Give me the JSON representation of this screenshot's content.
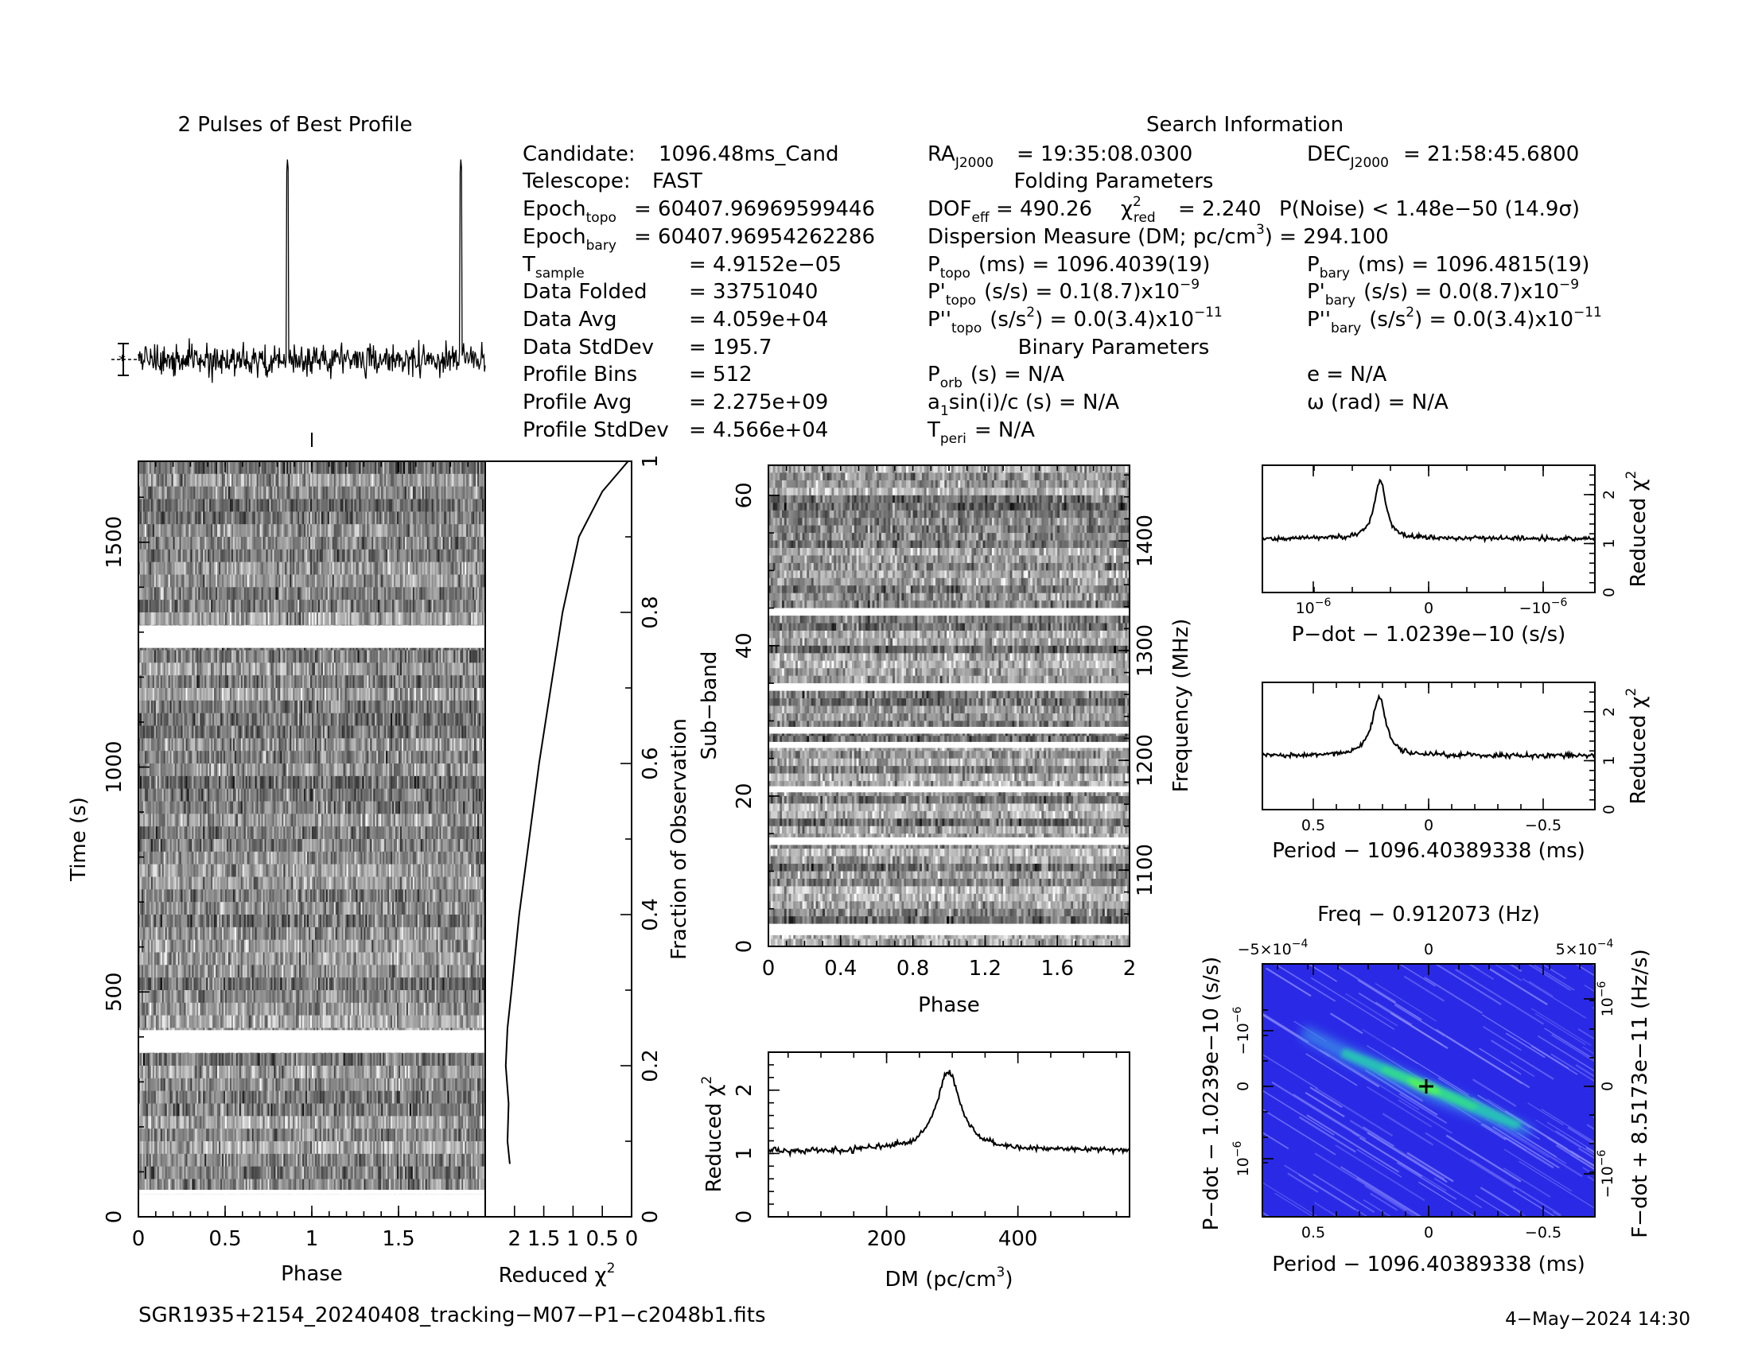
{
  "profile_panel": {
    "title": "2 Pulses of Best Profile"
  },
  "search_info": {
    "title": "Search Information",
    "folding_title": "Folding Parameters",
    "binary_title": "Binary Parameters",
    "candidate_label": "Candidate:",
    "candidate": "1096.48ms_Cand",
    "telescope_label": "Telescope:",
    "telescope": "FAST",
    "epoch_topo_label": "Epoch",
    "epoch_topo_sub": "topo",
    "epoch_topo": "= 60407.96969599446",
    "epoch_bary_label": "Epoch",
    "epoch_bary_sub": "bary",
    "epoch_bary": "= 60407.96954262286",
    "tsample_label": "T",
    "tsample_sub": "sample",
    "tsample": "=  4.9152e−05",
    "data_folded_label": "Data Folded",
    "data_folded": "=  33751040",
    "data_avg_label": "Data Avg",
    "data_avg": "=  4.059e+04",
    "data_std_label": "Data StdDev",
    "data_std": "=  195.7",
    "profile_bins_label": "Profile Bins",
    "profile_bins": "=  512",
    "profile_avg_label": "Profile Avg",
    "profile_avg": "=  2.275e+09",
    "profile_std_label": "Profile StdDev",
    "profile_std": "=  4.566e+04",
    "ra_label": "RA",
    "ra_sub": "J2000",
    "ra": "= 19:35:08.0300",
    "dec_label": "DEC",
    "dec_sub": "J2000",
    "dec": "= 21:58:45.6800",
    "dof_label": "DOF",
    "dof_sub": "eff",
    "dof": "= 490.26",
    "chi_label": "χ",
    "chi_sup": "2",
    "chi_sub": "red",
    "chi": "= 2.240",
    "pnoise": "P(Noise) < 1.48e−50   (14.9σ)",
    "dm_line_a": "Dispersion Measure (DM; pc/cm",
    "dm_line_sup": "3",
    "dm_line_b": ") = 294.100",
    "ptopo_label": "P",
    "ptopo_sub": "topo",
    "ptopo": "(ms) =  1096.4039(19)",
    "pbary_label": "P",
    "pbary_sub": "bary",
    "pbary": "(ms) =  1096.4815(19)",
    "pdtopo_label": "P'",
    "pdtopo_sub": "topo",
    "pdtopo": "(s/s) =  0.1(8.7)x10",
    "pdtopo_exp": "−9",
    "pdbary_label": "P'",
    "pdbary_sub": "bary",
    "pdbary": "(s/s) = 0.0(8.7)x10",
    "pdbary_exp": "−9",
    "pddtopo_label": "P''",
    "pddtopo_sub": "topo",
    "pddtopo_a": "(s/s",
    "pddtopo_sq": "2",
    "pddtopo_b": ") = 0.0(3.4)x10",
    "pddtopo_exp": "−11",
    "pddbary_label": "P''",
    "pddbary_sub": "bary",
    "pddbary_a": "(s/s",
    "pddbary_sq": "2",
    "pddbary_b": ") = 0.0(3.4)x10",
    "pddbary_exp": "−11",
    "porb_label": "P",
    "porb_sub": "orb",
    "porb": "(s) = N/A",
    "ecc": "e = N/A",
    "asini_a": "a",
    "asini_sub": "1",
    "asini_b": "sin(i)/c (s) = N/A",
    "omega": "ω (rad) = N/A",
    "tperi_label": "T",
    "tperi_sub": "peri",
    "tperi": "= N/A"
  },
  "footer": {
    "filename": "SGR1935+2154_20240408_tracking−M07−P1−c2048b1.fits",
    "timestamp": "4−May−2024 14:30"
  },
  "chart_data": [
    {
      "id": "best-profile",
      "type": "line",
      "title": "2 Pulses of Best Profile",
      "x": [
        0,
        2
      ],
      "x_unit": "phase",
      "pulse_phases": [
        0.86,
        1.86
      ],
      "description_values": {
        "baseline": "noise",
        "peak": "narrow pulse"
      }
    },
    {
      "id": "time-phase",
      "type": "heatmap",
      "xlabel": "Phase",
      "ylabel": "Time (s)",
      "xlim": [
        0,
        2
      ],
      "ylim": [
        0,
        1680
      ],
      "xticks": [
        "0",
        "0.5",
        "1",
        "1.5"
      ],
      "yticks": [
        "0",
        "500",
        "1000",
        "1500"
      ],
      "right_axis_label": "Fraction of Observation",
      "right_ticks": [
        "0",
        "0.2",
        "0.4",
        "0.6",
        "0.8",
        "1"
      ],
      "gaps_s": [
        [
          50,
          60
        ],
        [
          365,
          415
        ],
        [
          1265,
          1315
        ]
      ],
      "colormap": "gray"
    },
    {
      "id": "reduced-chi2-vs-time",
      "type": "line",
      "xlabel": "Reduced χ",
      "xlabel_sup": "2",
      "xticks": [
        "2",
        "1.5",
        "1",
        "0.5",
        "0"
      ],
      "xlim": [
        2.5,
        0
      ],
      "points": [
        [
          2.08,
          0.07
        ],
        [
          2.12,
          0.1
        ],
        [
          2.1,
          0.15
        ],
        [
          2.15,
          0.2
        ],
        [
          2.12,
          0.25
        ],
        [
          2.05,
          0.3
        ],
        [
          1.92,
          0.4
        ],
        [
          1.75,
          0.5
        ],
        [
          1.58,
          0.6
        ],
        [
          1.38,
          0.7
        ],
        [
          1.18,
          0.8
        ],
        [
          0.9,
          0.9
        ],
        [
          0.5,
          0.96
        ],
        [
          0.06,
          1.0
        ]
      ]
    },
    {
      "id": "subband-phase",
      "type": "heatmap",
      "xlabel": "Phase",
      "ylabel": "Sub−band",
      "right_axis_label": "Frequency (MHz)",
      "xlim": [
        0,
        2
      ],
      "ylim": [
        0,
        64
      ],
      "xticks": [
        "0",
        "0.4",
        "0.8",
        "1.2",
        "1.6",
        "2"
      ],
      "yticks": [
        "0",
        "20",
        "40",
        "60"
      ],
      "right_ticks": [
        "1100",
        "1200",
        "1300",
        "1400"
      ],
      "gap_subbands": [
        [
          1.5,
          3
        ],
        [
          13.5,
          14.5
        ],
        [
          20.5,
          21.3
        ],
        [
          26.4,
          27.2
        ],
        [
          28.3,
          29.2
        ],
        [
          34,
          35
        ],
        [
          44,
          45
        ]
      ],
      "colormap": "gray"
    },
    {
      "id": "dm-curve",
      "type": "line",
      "xlabel": "DM (pc/cm",
      "xlabel_sup": "3",
      "xlabel_end": ")",
      "ylabel": "Reduced χ",
      "ylabel_sup": "2",
      "xlim": [
        20,
        570
      ],
      "ylim": [
        0,
        2.6
      ],
      "xticks": [
        "200",
        "400"
      ],
      "yticks": [
        "0",
        "1",
        "2"
      ],
      "peak_dm": 294.1,
      "peak_chi2": 2.3,
      "baseline": 1.05
    },
    {
      "id": "pdot-curve",
      "type": "line",
      "xlabel": "P−dot − 1.0239e−10 (s/s)",
      "ylabel": "Reduced χ",
      "ylabel_sup": "2",
      "xticks": [
        "10",
        "0",
        "−10"
      ],
      "xtick_exp": "−6",
      "yticks": [
        "0",
        "1",
        "2"
      ],
      "ylim": [
        0,
        2.6
      ],
      "peak_chi2": 2.3,
      "baseline": 1.1
    },
    {
      "id": "period-curve",
      "type": "line",
      "xlabel": "Period − 1096.40389338 (ms)",
      "ylabel": "Reduced χ",
      "ylabel_sup": "2",
      "xticks": [
        "0.5",
        "0",
        "−0.5"
      ],
      "yticks": [
        "0",
        "1",
        "2"
      ],
      "ylim": [
        0,
        2.6
      ],
      "peak_chi2": 2.3,
      "baseline": 1.1
    },
    {
      "id": "period-pdot-plane",
      "type": "heatmap",
      "title": "Freq − 0.912073 (Hz)",
      "xlabel": "Period − 1096.40389338 (ms)",
      "ylabel": "P−dot − 1.0239e−10 (s/s)",
      "right_axis_label": "F−dot + 8.5173e−11 (Hz/s)",
      "xticks": [
        "0.5",
        "0",
        "−0.5"
      ],
      "top_ticks": [
        "−5×10",
        "0",
        "5×10"
      ],
      "top_tick_exp": "−4",
      "left_ticks": [
        "−10",
        "0",
        "10"
      ],
      "left_tick_exp": "−6",
      "right_ticks": [
        "10",
        "0",
        "−10"
      ],
      "right_tick_exp": "−6",
      "colormap": "blue-green",
      "colors": {
        "background": "#2828e8",
        "streak": "#8c8cff",
        "ridge": "#20d0a0",
        "peak": "#00ff60"
      }
    }
  ]
}
